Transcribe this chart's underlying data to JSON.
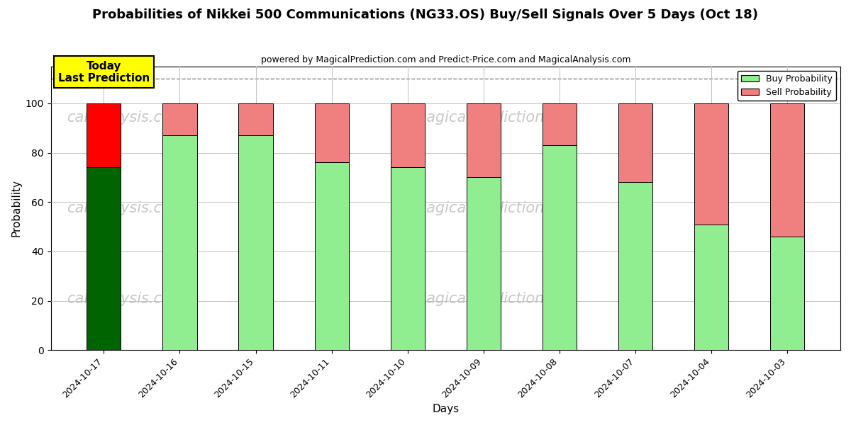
{
  "title": "Probabilities of Nikkei 500 Communications (NG33.OS) Buy/Sell Signals Over 5 Days (Oct 18)",
  "subtitle": "powered by MagicalPrediction.com and Predict-Price.com and MagicalAnalysis.com",
  "xlabel": "Days",
  "ylabel": "Probability",
  "categories": [
    "2024-10-17",
    "2024-10-16",
    "2024-10-15",
    "2024-10-11",
    "2024-10-10",
    "2024-10-09",
    "2024-10-08",
    "2024-10-07",
    "2024-10-04",
    "2024-10-03"
  ],
  "buy_values": [
    74,
    87,
    87,
    76,
    74,
    70,
    83,
    68,
    51,
    46
  ],
  "sell_values": [
    26,
    13,
    13,
    24,
    26,
    30,
    17,
    32,
    49,
    54
  ],
  "buy_colors": [
    "#006400",
    "#90EE90",
    "#90EE90",
    "#90EE90",
    "#90EE90",
    "#90EE90",
    "#90EE90",
    "#90EE90",
    "#90EE90",
    "#90EE90"
  ],
  "sell_colors": [
    "#FF0000",
    "#F08080",
    "#F08080",
    "#F08080",
    "#F08080",
    "#F08080",
    "#F08080",
    "#F08080",
    "#F08080",
    "#F08080"
  ],
  "today_label": "Today\nLast Prediction",
  "today_bg": "#FFFF00",
  "legend_buy_color": "#90EE90",
  "legend_sell_color": "#F08080",
  "dashed_line_y": 110,
  "ylim": [
    0,
    115
  ],
  "yticks": [
    0,
    20,
    40,
    60,
    80,
    100
  ],
  "bar_width": 0.45,
  "edgecolor": "#000000",
  "grid_color": "#C0C0C0",
  "watermark_color": "#C8C8C8",
  "bg_color": "#FFFFFF"
}
